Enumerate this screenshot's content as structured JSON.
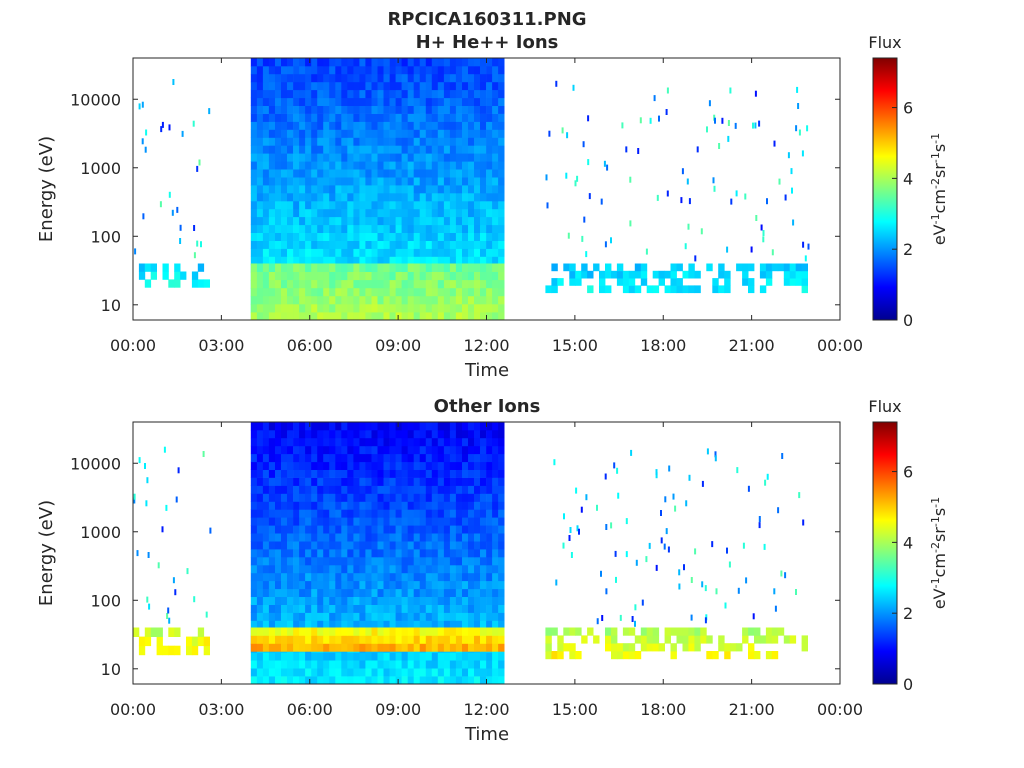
{
  "figure_title": "RPCICA160311.PNG",
  "chart_data": [
    {
      "type": "heatmap",
      "title": "H+ He++ Ions",
      "xlabel": "Time",
      "ylabel": "Energy (eV)",
      "x_ticks": [
        "00:00",
        "03:00",
        "06:00",
        "09:00",
        "12:00",
        "15:00",
        "18:00",
        "21:00",
        "00:00"
      ],
      "x_tick_hours": [
        0,
        3,
        6,
        9,
        12,
        15,
        18,
        21,
        24
      ],
      "xlim_hours": [
        0,
        24
      ],
      "y_scale": "log",
      "ylim": [
        6,
        40000
      ],
      "y_ticks": [
        10,
        100,
        1000,
        10000
      ],
      "y_tick_labels": [
        "10",
        "100",
        "1000",
        "10000"
      ],
      "colorbar": {
        "label": "Flux",
        "units": "eV-1cm-2sr-1s-1",
        "range": [
          0,
          7.4
        ],
        "ticks": [
          0,
          2,
          4,
          6
        ],
        "tick_labels": [
          "0",
          "2",
          "4",
          "6"
        ],
        "colormap": "jet"
      },
      "data_intervals_hours": [
        {
          "start": 0.0,
          "end": 2.6,
          "coverage": "sparse"
        },
        {
          "start": 4.0,
          "end": 12.6,
          "coverage": "continuous"
        },
        {
          "start": 14.0,
          "end": 22.9,
          "coverage": "sparse"
        }
      ],
      "bands": [
        {
          "interval": 1,
          "e_min": 6,
          "e_max": 40000,
          "flux": [
            2.9,
            1.4
          ]
        },
        {
          "interval": 1,
          "e_min": 6,
          "e_max": 40,
          "flux": [
            4.0,
            3.6
          ]
        },
        {
          "interval": 0,
          "e_min": 18,
          "e_max": 40,
          "flux": [
            2.8,
            2.5
          ]
        },
        {
          "interval": 2,
          "e_min": 15,
          "e_max": 40,
          "flux": [
            2.7,
            2.4
          ]
        }
      ]
    },
    {
      "type": "heatmap",
      "title": "Other Ions",
      "xlabel": "Time",
      "ylabel": "Energy (eV)",
      "x_ticks": [
        "00:00",
        "03:00",
        "06:00",
        "09:00",
        "12:00",
        "15:00",
        "18:00",
        "21:00",
        "00:00"
      ],
      "x_tick_hours": [
        0,
        3,
        6,
        9,
        12,
        15,
        18,
        21,
        24
      ],
      "xlim_hours": [
        0,
        24
      ],
      "y_scale": "log",
      "ylim": [
        6,
        40000
      ],
      "y_ticks": [
        10,
        100,
        1000,
        10000
      ],
      "y_tick_labels": [
        "10",
        "100",
        "1000",
        "10000"
      ],
      "colorbar": {
        "label": "Flux",
        "units": "eV-1cm-2sr-1s-1",
        "range": [
          0,
          7.4
        ],
        "ticks": [
          0,
          2,
          4,
          6
        ],
        "tick_labels": [
          "0",
          "2",
          "4",
          "6"
        ],
        "colormap": "jet"
      },
      "data_intervals_hours": [
        {
          "start": 0.0,
          "end": 2.6,
          "coverage": "sparse"
        },
        {
          "start": 4.0,
          "end": 12.6,
          "coverage": "continuous"
        },
        {
          "start": 14.0,
          "end": 22.9,
          "coverage": "sparse"
        }
      ],
      "bands": [
        {
          "interval": 1,
          "e_min": 6,
          "e_max": 40000,
          "flux": [
            2.6,
            0.9
          ]
        },
        {
          "interval": 1,
          "e_min": 18,
          "e_max": 40,
          "flux": [
            5.2,
            4.6
          ]
        },
        {
          "interval": 0,
          "e_min": 16,
          "e_max": 40,
          "flux": [
            4.8,
            4.2
          ]
        },
        {
          "interval": 2,
          "e_min": 14,
          "e_max": 40,
          "flux": [
            4.6,
            4.0
          ]
        }
      ]
    }
  ]
}
